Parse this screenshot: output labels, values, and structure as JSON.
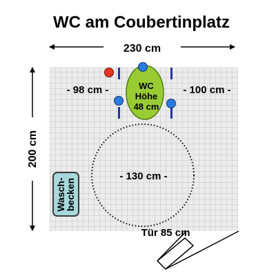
{
  "title": "WC am Coubertinplatz",
  "dimensions": {
    "width_label": "230 cm",
    "height_label": "200 cm",
    "left_clearance_label": "- 98 cm -",
    "right_clearance_label": "- 100 cm -",
    "turning_circle_label": "- 130 cm -",
    "door_label": "Tür 85 cm"
  },
  "wc": {
    "line1": "WC",
    "line2": "Höhe",
    "line3": "48 cm"
  },
  "sink": {
    "line1": "Wasch-",
    "line2": "becken"
  },
  "colors": {
    "wc_fill": "#99cc33",
    "wc_stroke": "#4e7a12",
    "sink_fill": "#a8d8dc",
    "sink_stroke": "#3a3a3a",
    "grab_bar": "#2233aa",
    "button_blue": "#2a7be0",
    "button_red": "#ee3322",
    "floor_grid": "#c4c4c4",
    "floor_bg": "#ececec"
  }
}
